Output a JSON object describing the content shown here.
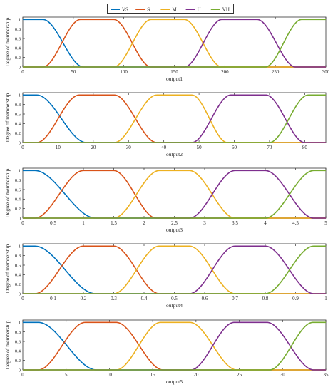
{
  "legend": {
    "placement": "top-center",
    "entries": [
      "VS",
      "S",
      "M",
      "H",
      "VH"
    ]
  },
  "colors": {
    "VS": "#0072BD",
    "S": "#D95319",
    "M": "#EDB120",
    "H": "#7E2F8E",
    "VH": "#77AC30",
    "axis": "#333333",
    "text": "#222222"
  },
  "chart_data": [
    {
      "type": "line",
      "xlabel": "output1",
      "ylabel": "Degree of membership",
      "xlim": [
        0,
        300
      ],
      "ylim": [
        0,
        1.05
      ],
      "xticks": [
        0,
        50,
        100,
        150,
        200,
        250,
        300
      ],
      "xtick_labels": [
        "0",
        "50",
        "100",
        "150",
        "200",
        "250",
        "300"
      ],
      "yticks": [
        0,
        0.2,
        0.4,
        0.6,
        0.8,
        1
      ],
      "ytick_labels": [
        "0",
        "0.2",
        "0.4",
        "0.6",
        "0.8",
        "1"
      ],
      "series": [
        {
          "name": "VS",
          "kind": "left",
          "points": [
            20,
            60
          ]
        },
        {
          "name": "S",
          "kind": "mid",
          "points": [
            20,
            57,
            90,
            127
          ]
        },
        {
          "name": "M",
          "kind": "mid",
          "points": [
            90,
            127,
            160,
            197
          ]
        },
        {
          "name": "H",
          "kind": "mid",
          "points": [
            160,
            197,
            232,
            270
          ]
        },
        {
          "name": "VH",
          "kind": "right",
          "points": [
            240,
            276
          ]
        }
      ]
    },
    {
      "type": "line",
      "xlabel": "output2",
      "ylabel": "Degree of membership",
      "xlim": [
        0,
        86
      ],
      "ylim": [
        0,
        1.05
      ],
      "xticks": [
        0,
        10,
        20,
        30,
        40,
        50,
        60,
        70,
        80
      ],
      "xtick_labels": [
        "0",
        "10",
        "20",
        "30",
        "40",
        "50",
        "60",
        "70",
        "80"
      ],
      "yticks": [
        0,
        0.2,
        0.4,
        0.6,
        0.8,
        1
      ],
      "ytick_labels": [
        "0",
        "0.2",
        "0.4",
        "0.6",
        "0.8",
        "1"
      ],
      "series": [
        {
          "name": "VS",
          "kind": "left",
          "points": [
            4,
            18
          ]
        },
        {
          "name": "S",
          "kind": "mid",
          "points": [
            4,
            16,
            26,
            38
          ]
        },
        {
          "name": "M",
          "kind": "mid",
          "points": [
            26,
            38,
            48,
            58
          ]
        },
        {
          "name": "H",
          "kind": "mid",
          "points": [
            48,
            59,
            69,
            80
          ]
        },
        {
          "name": "VH",
          "kind": "right",
          "points": [
            70,
            81
          ]
        }
      ]
    },
    {
      "type": "line",
      "xlabel": "output3",
      "ylabel": "Degree of membership",
      "xlim": [
        0,
        5
      ],
      "ylim": [
        0,
        1.05
      ],
      "xticks": [
        0,
        0.5,
        1,
        1.5,
        2,
        2.5,
        3,
        3.5,
        4,
        4.5,
        5
      ],
      "xtick_labels": [
        "0",
        "0.5",
        "1",
        "1.5",
        "2",
        "2.5",
        "3",
        "3.5",
        "4",
        "4.5",
        "5"
      ],
      "yticks": [
        0,
        0.2,
        0.4,
        0.6,
        0.8,
        1
      ],
      "ytick_labels": [
        "0",
        "0.2",
        "0.4",
        "0.6",
        "0.8",
        "1"
      ],
      "series": [
        {
          "name": "VS",
          "kind": "left",
          "points": [
            0.2,
            1.2
          ]
        },
        {
          "name": "S",
          "kind": "mid",
          "points": [
            0.2,
            1.0,
            1.5,
            2.2
          ]
        },
        {
          "name": "M",
          "kind": "mid",
          "points": [
            1.5,
            2.25,
            2.75,
            3.5
          ]
        },
        {
          "name": "H",
          "kind": "mid",
          "points": [
            2.75,
            3.5,
            4.0,
            4.8
          ]
        },
        {
          "name": "VH",
          "kind": "right",
          "points": [
            4.0,
            4.8
          ]
        }
      ]
    },
    {
      "type": "line",
      "xlabel": "output4",
      "ylabel": "Degree of membership",
      "xlim": [
        0,
        1
      ],
      "ylim": [
        0,
        1.05
      ],
      "xticks": [
        0,
        0.1,
        0.2,
        0.3,
        0.4,
        0.5,
        0.6,
        0.7,
        0.8,
        0.9,
        1
      ],
      "xtick_labels": [
        "0",
        "0.1",
        "0.2",
        "0.3",
        "0.4",
        "0.5",
        "0.6",
        "0.7",
        "0.8",
        "0.9",
        "1"
      ],
      "yticks": [
        0,
        0.2,
        0.4,
        0.6,
        0.8,
        1
      ],
      "ytick_labels": [
        "0",
        "0.2",
        "0.4",
        "0.6",
        "0.8",
        "1"
      ],
      "series": [
        {
          "name": "VS",
          "kind": "left",
          "points": [
            0.04,
            0.24
          ]
        },
        {
          "name": "S",
          "kind": "mid",
          "points": [
            0.04,
            0.2,
            0.3,
            0.45
          ]
        },
        {
          "name": "M",
          "kind": "mid",
          "points": [
            0.3,
            0.45,
            0.55,
            0.7
          ]
        },
        {
          "name": "H",
          "kind": "mid",
          "points": [
            0.55,
            0.7,
            0.8,
            0.96
          ]
        },
        {
          "name": "VH",
          "kind": "right",
          "points": [
            0.8,
            0.96
          ]
        }
      ]
    },
    {
      "type": "line",
      "xlabel": "output5",
      "ylabel": "Degree of membership",
      "xlim": [
        0,
        35
      ],
      "ylim": [
        0,
        1.05
      ],
      "xticks": [
        0,
        5,
        10,
        15,
        20,
        25,
        30,
        35
      ],
      "xtick_labels": [
        "0",
        "5",
        "10",
        "15",
        "20",
        "25",
        "30",
        "35"
      ],
      "yticks": [
        0,
        0.2,
        0.4,
        0.6,
        0.8,
        1
      ],
      "ytick_labels": [
        "0",
        "0.2",
        "0.4",
        "0.6",
        "0.8",
        "1"
      ],
      "series": [
        {
          "name": "VS",
          "kind": "left",
          "points": [
            1.8,
            8.5
          ]
        },
        {
          "name": "S",
          "kind": "mid",
          "points": [
            1.8,
            7.2,
            10.8,
            16.2
          ]
        },
        {
          "name": "M",
          "kind": "mid",
          "points": [
            10.8,
            15.9,
            19.3,
            24.7
          ]
        },
        {
          "name": "H",
          "kind": "mid",
          "points": [
            19.4,
            24.4,
            28.2,
            33.6
          ]
        },
        {
          "name": "VH",
          "kind": "right",
          "points": [
            28.5,
            33.5
          ]
        }
      ]
    }
  ]
}
